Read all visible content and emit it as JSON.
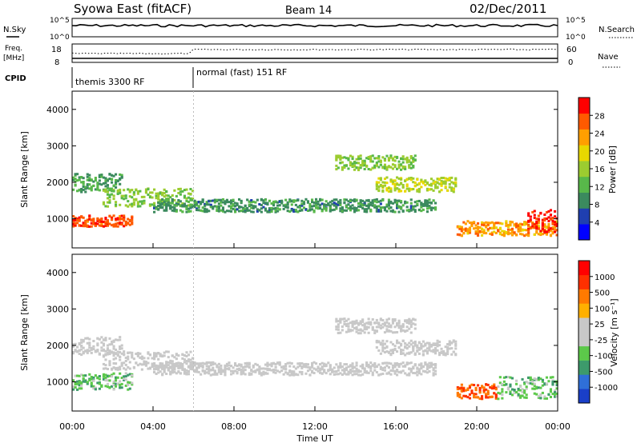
{
  "header": {
    "station": "Syowa East (fitACF)",
    "beam": "Beam 14",
    "date": "02/Dec/2011"
  },
  "noise_panel": {
    "left_label": "N.Sky",
    "right_label": "N.Search",
    "ticks": [
      "10^5",
      "10^0"
    ]
  },
  "freq_panel": {
    "left_label_1": "Freq.",
    "left_label_2": "[MHz]",
    "left_ticks": [
      "18",
      "8"
    ],
    "right_label": "Nave",
    "right_ticks": [
      "60",
      "0"
    ]
  },
  "cpid_panel": {
    "label": "CPID",
    "modes": [
      {
        "text": "themis 3300 RF",
        "start_hour": 0
      },
      {
        "text": "normal (fast) 151 RF",
        "start_hour": 6
      }
    ]
  },
  "colors": {
    "power": [
      "#0000ff",
      "#1f3fb0",
      "#3b8a5e",
      "#58b84a",
      "#9ccc30",
      "#e8d800",
      "#ff9f00",
      "#ff5a00",
      "#ff0000"
    ],
    "velocity": [
      "#1a3fc8",
      "#2f6fd8",
      "#3d9a6b",
      "#5cc94a",
      "#c8c8c8",
      "#c8c8c8",
      "#ffb000",
      "#ff7a00",
      "#ff3000",
      "#ff0000"
    ]
  },
  "chart_data": [
    {
      "type": "heatmap",
      "name": "power",
      "ylabel": "Slant Range [km]",
      "xlabel": "",
      "xlim": [
        0,
        24
      ],
      "ylim": [
        200,
        4500
      ],
      "yticks": [
        "1000",
        "2000",
        "3000",
        "4000"
      ],
      "xticks": [
        "00:00",
        "04:00",
        "08:00",
        "12:00",
        "16:00",
        "20:00",
        "00:00"
      ],
      "colorbar": {
        "label": "Power [dB]",
        "ticks": [
          "28",
          "24",
          "20",
          "16",
          "12",
          "8",
          "4"
        ],
        "range": [
          0,
          30
        ]
      },
      "bands": [
        {
          "hours": [
            0,
            3
          ],
          "range_km": [
            750,
            1050
          ],
          "value": 26
        },
        {
          "hours": [
            0,
            2.5
          ],
          "range_km": [
            1700,
            2200
          ],
          "value": 10
        },
        {
          "hours": [
            1.5,
            6
          ],
          "range_km": [
            1300,
            1800
          ],
          "value": 14
        },
        {
          "hours": [
            4,
            18
          ],
          "range_km": [
            1150,
            1500
          ],
          "value": 9
        },
        {
          "hours": [
            13,
            17
          ],
          "range_km": [
            2300,
            2700
          ],
          "value": 14
        },
        {
          "hours": [
            15,
            19
          ],
          "range_km": [
            1700,
            2100
          ],
          "value": 16
        },
        {
          "hours": [
            19,
            24
          ],
          "range_km": [
            500,
            900
          ],
          "value": 22
        },
        {
          "hours": [
            22.5,
            24
          ],
          "range_km": [
            600,
            1200
          ],
          "value": 28
        }
      ]
    },
    {
      "type": "heatmap",
      "name": "velocity",
      "ylabel": "Slant Range [km]",
      "xlabel": "Time UT",
      "xlim": [
        0,
        24
      ],
      "ylim": [
        200,
        4500
      ],
      "yticks": [
        "1000",
        "2000",
        "3000",
        "4000"
      ],
      "xticks": [
        "00:00",
        "04:00",
        "08:00",
        "12:00",
        "16:00",
        "20:00",
        "00:00"
      ],
      "colorbar": {
        "label": "Velocity [m s⁻¹]",
        "ticks": [
          "1000",
          "500",
          "100",
          "25",
          "-25",
          "-100",
          "-500",
          "-1000"
        ],
        "range": [
          -1000,
          1000
        ]
      },
      "bands": [
        {
          "hours": [
            0,
            3
          ],
          "range_km": [
            750,
            1200
          ],
          "value": -300
        },
        {
          "hours": [
            0,
            2.5
          ],
          "range_km": [
            1700,
            2200
          ],
          "value": 0
        },
        {
          "hours": [
            1.5,
            6
          ],
          "range_km": [
            1300,
            1800
          ],
          "value": 0
        },
        {
          "hours": [
            4,
            18
          ],
          "range_km": [
            1150,
            1500
          ],
          "value": 0
        },
        {
          "hours": [
            13,
            17
          ],
          "range_km": [
            2300,
            2700
          ],
          "value": 0
        },
        {
          "hours": [
            15,
            19
          ],
          "range_km": [
            1700,
            2100
          ],
          "value": -20
        },
        {
          "hours": [
            19,
            21
          ],
          "range_km": [
            500,
            900
          ],
          "value": 600
        },
        {
          "hours": [
            21,
            24
          ],
          "range_km": [
            500,
            1100
          ],
          "value": -300
        }
      ]
    }
  ]
}
